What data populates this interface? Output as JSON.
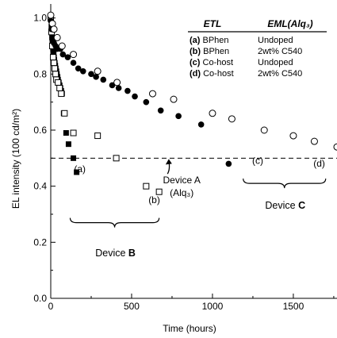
{
  "chart_data": {
    "type": "scatter",
    "xlabel": "Time (hours)",
    "ylabel": "EL intensity (100 cd/m²)",
    "xlim": [
      0,
      1770
    ],
    "ylim": [
      0,
      1.05
    ],
    "x_ticks": [
      0,
      500,
      1000,
      1500
    ],
    "y_ticks": [
      0.0,
      0.2,
      0.4,
      0.6,
      0.8,
      1.0
    ],
    "x_tick_labels": [
      "0",
      "500",
      "1000",
      "1500"
    ],
    "y_tick_labels": [
      "0.0",
      "0.2",
      "0.4",
      "0.6",
      "0.8",
      "1.0"
    ],
    "reference_line": {
      "y": 0.5,
      "style": "dashed"
    },
    "legend_table": {
      "headers": [
        "ETL",
        "EML(Alq₃)"
      ],
      "rows": [
        [
          "(a) BPhen",
          "Undoped"
        ],
        [
          "(b) BPhen",
          "2wt% C540"
        ],
        [
          "(c) Co-host",
          "Undoped"
        ],
        [
          "(d) Co-host",
          "2wt% C540"
        ]
      ]
    },
    "series": [
      {
        "label": "(a)",
        "marker": "filled-square",
        "points": [
          [
            2,
            1.0
          ],
          [
            4,
            0.97
          ],
          [
            6,
            0.95
          ],
          [
            8,
            0.93
          ],
          [
            10,
            0.91
          ],
          [
            12,
            0.9
          ],
          [
            14,
            0.89
          ],
          [
            16,
            0.88
          ],
          [
            18,
            0.87
          ],
          [
            20,
            0.86
          ],
          [
            22,
            0.85
          ],
          [
            25,
            0.84
          ],
          [
            28,
            0.83
          ],
          [
            31,
            0.82
          ],
          [
            35,
            0.81
          ],
          [
            38,
            0.8
          ],
          [
            42,
            0.79
          ],
          [
            45,
            0.78
          ],
          [
            50,
            0.77
          ],
          [
            55,
            0.76
          ],
          [
            60,
            0.75
          ],
          [
            65,
            0.74
          ],
          [
            70,
            0.73
          ],
          [
            80,
            0.66
          ],
          [
            95,
            0.59
          ],
          [
            110,
            0.55
          ],
          [
            140,
            0.5
          ],
          [
            160,
            0.45
          ]
        ]
      },
      {
        "label": "(b)",
        "marker": "open-square",
        "points": [
          [
            0,
            1.0
          ],
          [
            5,
            0.95
          ],
          [
            10,
            0.9
          ],
          [
            15,
            0.86
          ],
          [
            20,
            0.84
          ],
          [
            25,
            0.82
          ],
          [
            30,
            0.8
          ],
          [
            35,
            0.78
          ],
          [
            45,
            0.77
          ],
          [
            55,
            0.75
          ],
          [
            65,
            0.73
          ],
          [
            85,
            0.66
          ],
          [
            140,
            0.59
          ],
          [
            290,
            0.58
          ],
          [
            405,
            0.5
          ],
          [
            590,
            0.4
          ],
          [
            670,
            0.38
          ]
        ]
      },
      {
        "label": "(c)",
        "marker": "filled-circle",
        "points": [
          [
            0,
            0.99
          ],
          [
            5,
            0.96
          ],
          [
            10,
            0.93
          ],
          [
            20,
            0.91
          ],
          [
            30,
            0.9
          ],
          [
            40,
            0.89
          ],
          [
            60,
            0.89
          ],
          [
            75,
            0.87
          ],
          [
            105,
            0.86
          ],
          [
            140,
            0.84
          ],
          [
            170,
            0.82
          ],
          [
            200,
            0.81
          ],
          [
            250,
            0.8
          ],
          [
            280,
            0.79
          ],
          [
            325,
            0.78
          ],
          [
            380,
            0.76
          ],
          [
            420,
            0.75
          ],
          [
            475,
            0.74
          ],
          [
            520,
            0.72
          ],
          [
            590,
            0.7
          ],
          [
            680,
            0.67
          ],
          [
            790,
            0.65
          ],
          [
            930,
            0.62
          ],
          [
            1100,
            0.48
          ]
        ]
      },
      {
        "label": "(d)",
        "marker": "open-circle",
        "points": [
          [
            0,
            1.01
          ],
          [
            10,
            0.98
          ],
          [
            20,
            0.96
          ],
          [
            40,
            0.93
          ],
          [
            70,
            0.9
          ],
          [
            140,
            0.87
          ],
          [
            290,
            0.81
          ],
          [
            410,
            0.77
          ],
          [
            630,
            0.73
          ],
          [
            760,
            0.71
          ],
          [
            1000,
            0.66
          ],
          [
            1120,
            0.64
          ],
          [
            1320,
            0.6
          ],
          [
            1500,
            0.58
          ],
          [
            1630,
            0.56
          ],
          [
            1770,
            0.54
          ]
        ]
      }
    ],
    "annotations": [
      {
        "id": "a",
        "text": "(a)",
        "x": 180,
        "y": 0.45
      },
      {
        "id": "b",
        "text": "(b)",
        "x": 640,
        "y": 0.34
      },
      {
        "id": "c",
        "text": "(c)",
        "x": 1280,
        "y": 0.48
      },
      {
        "id": "d",
        "text": "(d)",
        "x": 1660,
        "y": 0.47
      },
      {
        "id": "deviceA",
        "text": "Device A",
        "subtext": "(Alq₃)",
        "x": 810,
        "y": 0.41,
        "arrow_to": [
          720,
          0.5
        ]
      },
      {
        "id": "deviceB",
        "text": "Device B",
        "x": 400,
        "y": 0.15,
        "brace_from": 120,
        "brace_to": 670,
        "brace_y": 0.27
      },
      {
        "id": "deviceC",
        "text": "Device C",
        "x": 1450,
        "y": 0.32,
        "brace_from": 1190,
        "brace_to": 1700,
        "brace_y": 0.41
      }
    ]
  }
}
